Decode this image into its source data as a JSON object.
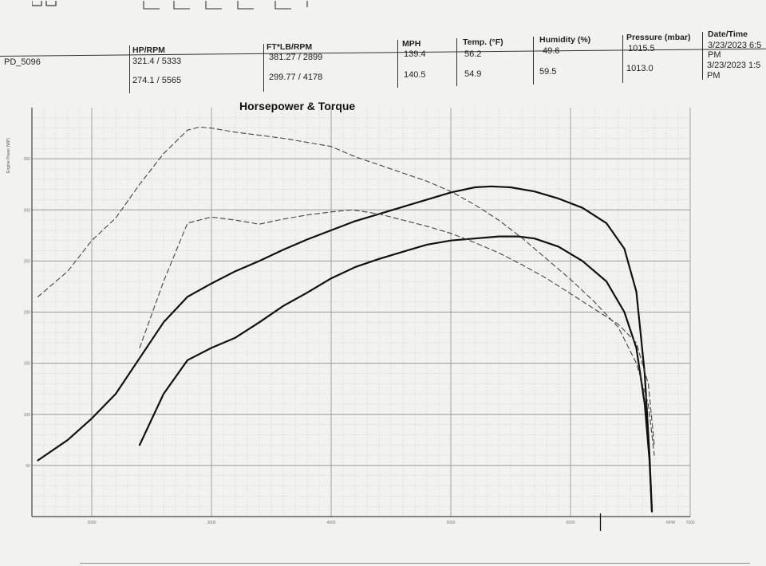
{
  "header": {
    "columns": [
      {
        "label": "HP/RPM"
      },
      {
        "label": "FT*LB/RPM"
      },
      {
        "label": "MPH"
      },
      {
        "label": "Temp. (°F)"
      },
      {
        "label": "Humidity (%)"
      },
      {
        "label": "Pressure (mbar)"
      },
      {
        "label": "Date/Time"
      }
    ],
    "run_id": "PD_5096",
    "rows": [
      {
        "hp": "321.4 / 5333",
        "torque": "381.27 / 2899",
        "mph": "139.4",
        "temp": "56.2",
        "humidity": "49.6",
        "pressure": "1015.5",
        "date_line1": "3/23/2023 6:5",
        "date_line2": "PM"
      },
      {
        "hp": "274.1 / 5565",
        "torque": "299.77 / 4178",
        "mph": "140.5",
        "temp": "54.9",
        "humidity": "59.5",
        "pressure": "1013.0",
        "date_line1": "3/23/2023 1:5",
        "date_line2": "PM"
      }
    ]
  },
  "chart_data": {
    "type": "line",
    "title": "Horsepower & Torque",
    "xlabel": "RPM",
    "ylabel": "Engine Power (WP)",
    "xlim": [
      1500,
      7000
    ],
    "ylim": [
      0,
      400
    ],
    "x_ticks": [
      2000,
      3000,
      4000,
      5000,
      6000,
      7000
    ],
    "y_ticks": [
      50,
      100,
      150,
      200,
      250,
      300,
      350
    ],
    "series": [
      {
        "kind": "hp",
        "style": "solid",
        "color": "#111111",
        "x": [
          1550,
          1800,
          2000,
          2200,
          2400,
          2600,
          2800,
          3000,
          3200,
          3400,
          3600,
          3800,
          4000,
          4200,
          4400,
          4600,
          4800,
          5000,
          5200,
          5333,
          5500,
          5700,
          5900,
          6100,
          6300,
          6450,
          6550,
          6620,
          6660,
          6680
        ],
        "values": [
          55,
          75,
          96,
          120,
          155,
          190,
          215,
          228,
          240,
          250,
          261,
          271,
          280,
          289,
          296,
          303,
          310,
          317,
          322,
          323,
          322,
          318,
          311,
          302,
          287,
          262,
          220,
          140,
          60,
          5
        ]
      },
      {
        "kind": "hp",
        "style": "solid",
        "color": "#111111",
        "x": [
          2400,
          2600,
          2800,
          3000,
          3200,
          3400,
          3600,
          3800,
          4000,
          4200,
          4400,
          4600,
          4800,
          5000,
          5200,
          5400,
          5565,
          5700,
          5900,
          6100,
          6300,
          6450,
          6550,
          6620,
          6660,
          6680
        ],
        "values": [
          70,
          120,
          153,
          165,
          175,
          190,
          206,
          219,
          233,
          244,
          252,
          259,
          266,
          270,
          272,
          274,
          274,
          272,
          264,
          250,
          230,
          200,
          165,
          110,
          55,
          5
        ]
      },
      {
        "kind": "torque",
        "style": "dashed",
        "color": "#444444",
        "x": [
          1550,
          1800,
          2000,
          2200,
          2400,
          2600,
          2800,
          2899,
          3000,
          3200,
          3400,
          3600,
          3800,
          4000,
          4200,
          4400,
          4600,
          4800,
          5000,
          5200,
          5400,
          5600,
          5800,
          6000,
          6200,
          6400,
          6550,
          6650,
          6700
        ],
        "values": [
          215,
          240,
          270,
          292,
          325,
          355,
          378,
          381,
          380,
          376,
          373,
          370,
          366,
          362,
          352,
          344,
          336,
          328,
          318,
          305,
          290,
          272,
          252,
          232,
          210,
          185,
          150,
          110,
          60
        ]
      },
      {
        "kind": "torque",
        "style": "dashed",
        "color": "#444444",
        "x": [
          2400,
          2600,
          2800,
          3000,
          3200,
          3400,
          3600,
          3800,
          4000,
          4178,
          4400,
          4600,
          4800,
          5000,
          5200,
          5400,
          5600,
          5800,
          6000,
          6200,
          6400,
          6550,
          6650,
          6700
        ],
        "values": [
          165,
          230,
          287,
          293,
          290,
          286,
          291,
          295,
          298,
          300,
          296,
          290,
          284,
          277,
          268,
          258,
          246,
          233,
          218,
          203,
          188,
          170,
          130,
          70
        ]
      }
    ]
  }
}
